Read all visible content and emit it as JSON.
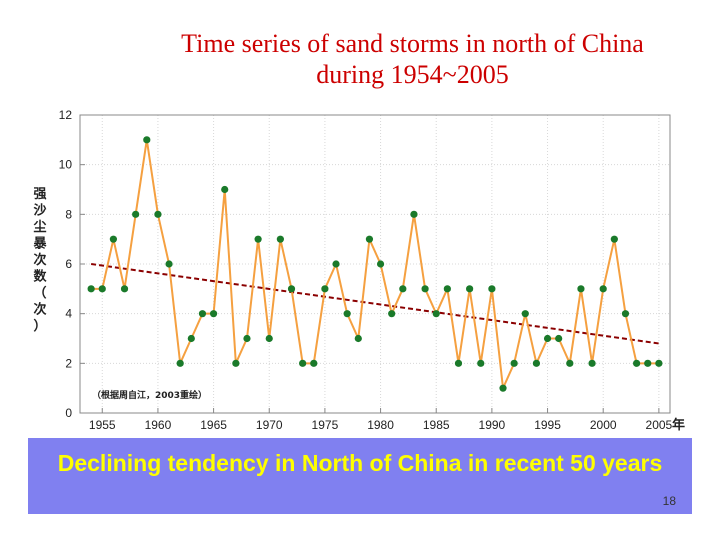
{
  "slide": {
    "title_line1": "Time series of sand storms in north of China",
    "title_line2": "during 1954~2005",
    "banner": "Declining tendency in North of China in recent 50 years",
    "page_number": "18"
  },
  "colors": {
    "title": "#cc0000",
    "line": "#f5a040",
    "marker": "#1a7a2a",
    "trend": "#8b0000",
    "banner_bg": "#8080f0",
    "banner_text": "#ffff00"
  },
  "chart_data": {
    "type": "line",
    "title": "",
    "xlabel": "年",
    "ylabel": "强沙尘暴次数（次）",
    "note": "（根据周自江，2003重绘）",
    "xlim": [
      1953,
      2006
    ],
    "ylim": [
      0,
      12
    ],
    "xticks": [
      1955,
      1960,
      1965,
      1970,
      1975,
      1980,
      1985,
      1990,
      1995,
      2000,
      2005
    ],
    "yticks": [
      0,
      2,
      4,
      6,
      8,
      10,
      12
    ],
    "grid": true,
    "series": [
      {
        "x": [
          1954,
          1955,
          1956,
          1957,
          1958,
          1959,
          1960,
          1961,
          1962,
          1963,
          1964,
          1965,
          1966,
          1967,
          1968,
          1969,
          1970,
          1971,
          1972,
          1973,
          1974,
          1975,
          1976,
          1977,
          1978,
          1979,
          1980,
          1981,
          1982,
          1983,
          1984,
          1985,
          1986,
          1987,
          1988,
          1989,
          1990,
          1991,
          1992,
          1993,
          1994,
          1995,
          1996,
          1997,
          1998,
          1999,
          2000,
          2001,
          2002,
          2003,
          2004,
          2005
        ],
        "values": [
          5,
          5,
          7,
          5,
          8,
          11,
          8,
          6,
          2,
          3,
          4,
          4,
          9,
          2,
          3,
          7,
          3,
          7,
          5,
          2,
          2,
          5,
          6,
          4,
          3,
          7,
          6,
          4,
          5,
          8,
          5,
          4,
          5,
          2,
          5,
          2,
          5,
          1,
          2,
          4,
          2,
          3,
          3,
          2,
          5,
          2,
          5,
          7,
          4,
          2,
          2,
          2
        ]
      }
    ],
    "trend": {
      "x": [
        1954,
        2005
      ],
      "values": [
        6.0,
        2.8
      ]
    }
  }
}
